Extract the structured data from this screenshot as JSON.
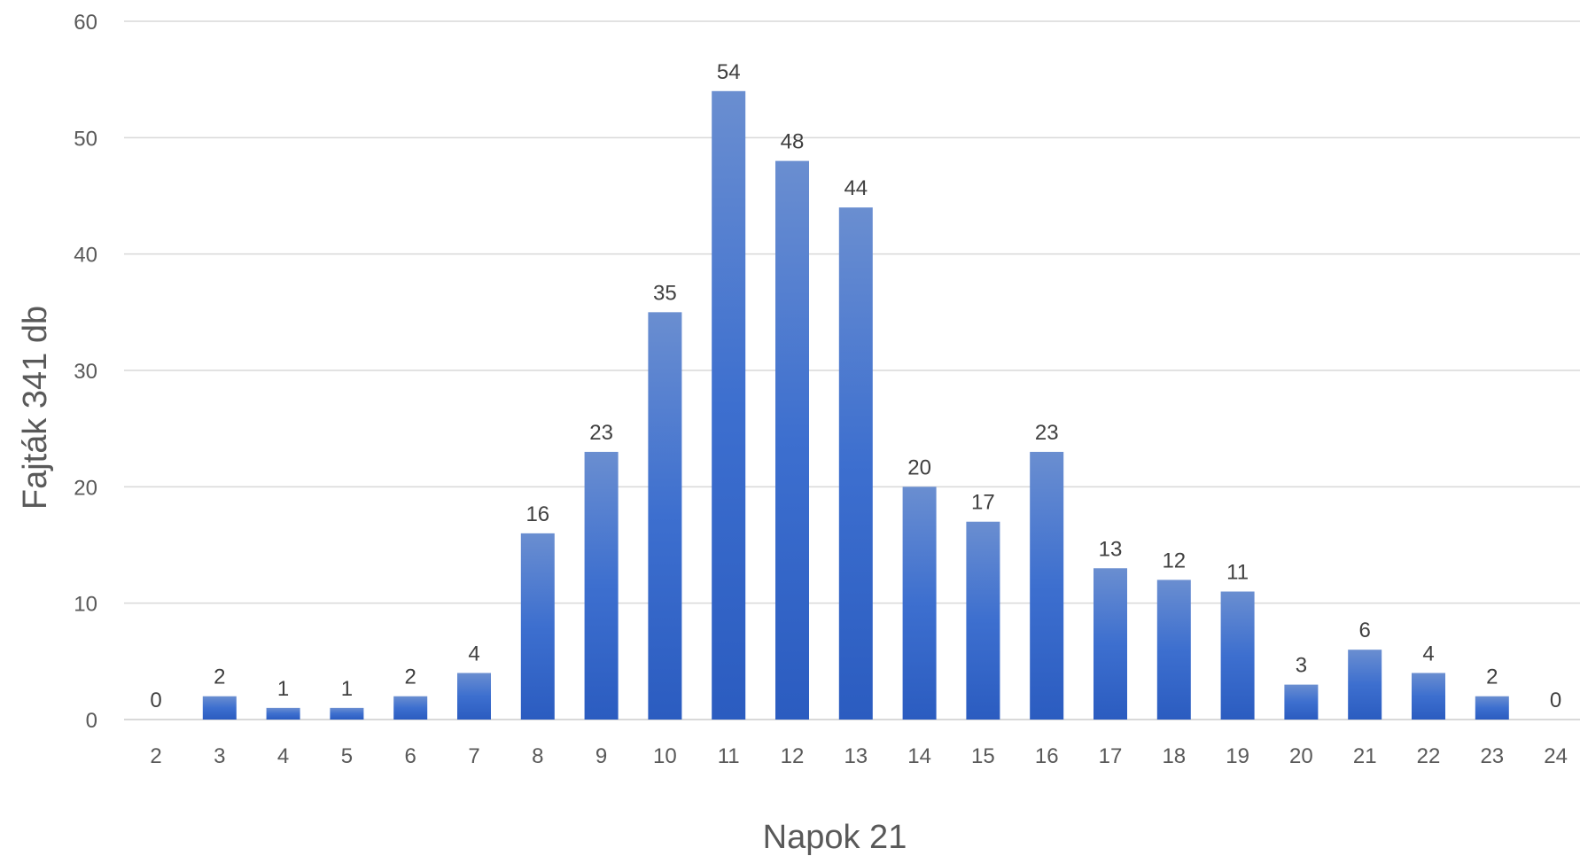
{
  "chart_data": {
    "type": "bar",
    "categories": [
      "2",
      "3",
      "4",
      "5",
      "6",
      "7",
      "8",
      "9",
      "10",
      "11",
      "12",
      "13",
      "14",
      "15",
      "16",
      "17",
      "18",
      "19",
      "20",
      "21",
      "22",
      "23",
      "24"
    ],
    "values": [
      0,
      2,
      1,
      1,
      2,
      4,
      16,
      23,
      35,
      54,
      48,
      44,
      20,
      17,
      23,
      13,
      12,
      11,
      3,
      6,
      4,
      2,
      0
    ],
    "title": "",
    "xlabel": "Napok 21",
    "ylabel": "Fajták 341 db",
    "ylim": [
      0,
      60
    ],
    "yticks": [
      0,
      10,
      20,
      30,
      40,
      50,
      60
    ],
    "grid": true,
    "legend": "none",
    "data_labels": true,
    "bar_color": "#4472C4"
  }
}
